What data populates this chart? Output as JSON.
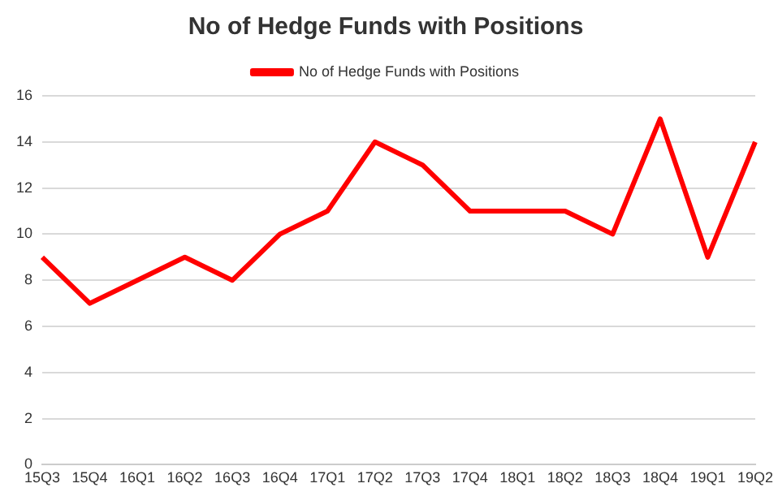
{
  "chart_data": {
    "type": "line",
    "title": "No of Hedge Funds with Positions",
    "categories": [
      "15Q3",
      "15Q4",
      "16Q1",
      "16Q2",
      "16Q3",
      "16Q4",
      "17Q1",
      "17Q2",
      "17Q3",
      "17Q4",
      "18Q1",
      "18Q2",
      "18Q3",
      "18Q4",
      "19Q1",
      "19Q2"
    ],
    "series": [
      {
        "name": "No of Hedge Funds with Positions",
        "color": "#ff0000",
        "values": [
          9,
          7,
          8,
          9,
          8,
          10,
          11,
          14,
          13,
          11,
          11,
          11,
          10,
          15,
          9,
          14
        ]
      }
    ],
    "ylim": [
      0,
      16
    ],
    "yticks": [
      0,
      2,
      4,
      6,
      8,
      10,
      12,
      14,
      16
    ],
    "grid": "y",
    "legend": "top",
    "marker": "none"
  }
}
